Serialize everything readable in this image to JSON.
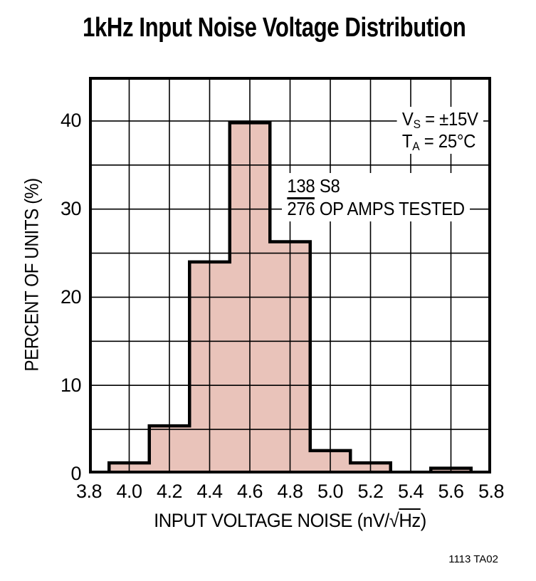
{
  "title": "1kHz Input Noise Voltage Distribution",
  "figure_code": "1113 TA02",
  "colors": {
    "bar_fill": "#e9c3ba",
    "line": "#000000",
    "background": "#ffffff"
  },
  "annotations": {
    "conditions": [
      {
        "base": "V",
        "sub": "S",
        "rest": " = ±15V"
      },
      {
        "base": "T",
        "sub": "A",
        "rest": " = 25°C"
      }
    ],
    "sample": {
      "numerator": "138",
      "numerator_suffix": " S8",
      "denominator": "276",
      "denominator_suffix": " OP AMPS TESTED"
    }
  },
  "xlabel_parts": {
    "prefix": "INPUT VOLTAGE NOISE (nV/",
    "radical": "√",
    "radicand": "Hz",
    "suffix": ")"
  },
  "chart_data": {
    "type": "bar",
    "subtype": "histogram",
    "title": "1kHz Input Noise Voltage Distribution",
    "xlabel": "INPUT VOLTAGE NOISE (nV/√Hz)",
    "ylabel": "PERCENT OF UNITS (%)",
    "xlim": [
      3.8,
      5.8
    ],
    "ylim": [
      0,
      45
    ],
    "bin_width": 0.2,
    "bin_centers": [
      4.0,
      4.2,
      4.4,
      4.6,
      4.8,
      5.0,
      5.2,
      5.4,
      5.6
    ],
    "values": [
      1.2,
      5.4,
      24,
      39.8,
      26.3,
      2.6,
      1.2,
      0,
      0.6
    ],
    "x_ticks": [
      "3.8",
      "4.0",
      "4.2",
      "4.4",
      "4.6",
      "4.8",
      "5.0",
      "5.2",
      "5.4",
      "5.6",
      "5.8"
    ],
    "y_ticks": [
      "0",
      "10",
      "20",
      "30",
      "40"
    ],
    "grid": {
      "x_step": 0.2,
      "y_step": 5,
      "visible": true
    },
    "legend": null,
    "annotations_text": [
      "VS = ±15V",
      "TA = 25°C",
      "138 S8 / 276 OP AMPS TESTED"
    ]
  }
}
